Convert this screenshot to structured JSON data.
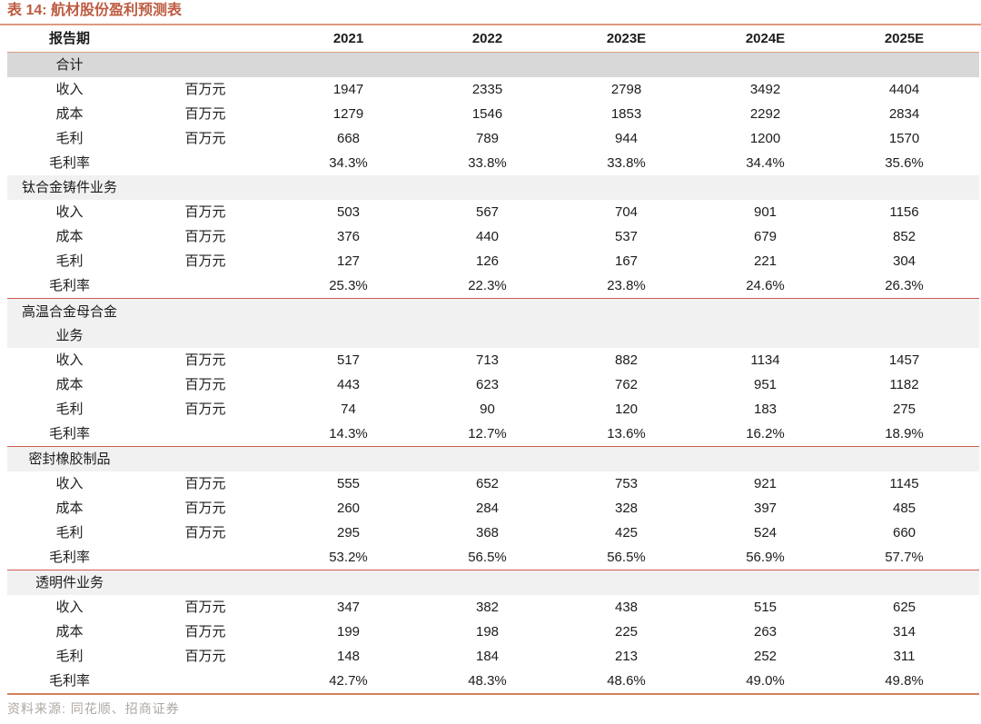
{
  "title": "表 14: 航材股份盈利预测表",
  "source_note": "资料来源: 同花顺、招商证券",
  "colors": {
    "accent": "#BD5B41",
    "rule_orange": "#DD9B7E",
    "rule_orange_bottom": "#D2815A",
    "rule_red": "#CF5A4E",
    "band_dark": "#D8D8D8",
    "band_light": "#F1F1F1",
    "ink": "#1C1C1C",
    "source_gray": "#AFA7A0"
  },
  "table": {
    "header": {
      "period_label": "报告期",
      "years": [
        "2021",
        "2022",
        "2023E",
        "2024E",
        "2025E"
      ]
    },
    "unit_label": "百万元",
    "sections": [
      {
        "name": "合计",
        "name_lines": [
          "合计"
        ],
        "band": "dark",
        "top_divider": false,
        "rows": [
          {
            "label": "收入",
            "unit": "百万元",
            "values": [
              "1947",
              "2335",
              "2798",
              "3492",
              "4404"
            ]
          },
          {
            "label": "成本",
            "unit": "百万元",
            "values": [
              "1279",
              "1546",
              "1853",
              "2292",
              "2834"
            ]
          },
          {
            "label": "毛利",
            "unit": "百万元",
            "values": [
              "668",
              "789",
              "944",
              "1200",
              "1570"
            ]
          },
          {
            "label": "毛利率",
            "unit": "",
            "values": [
              "34.3%",
              "33.8%",
              "33.8%",
              "34.4%",
              "35.6%"
            ]
          }
        ]
      },
      {
        "name": "钛合金铸件业务",
        "name_lines": [
          "钛合金铸件业务"
        ],
        "band": "light",
        "top_divider": false,
        "rows": [
          {
            "label": "收入",
            "unit": "百万元",
            "values": [
              "503",
              "567",
              "704",
              "901",
              "1156"
            ]
          },
          {
            "label": "成本",
            "unit": "百万元",
            "values": [
              "376",
              "440",
              "537",
              "679",
              "852"
            ]
          },
          {
            "label": "毛利",
            "unit": "百万元",
            "values": [
              "127",
              "126",
              "167",
              "221",
              "304"
            ]
          },
          {
            "label": "毛利率",
            "unit": "",
            "values": [
              "25.3%",
              "22.3%",
              "23.8%",
              "24.6%",
              "26.3%"
            ]
          }
        ]
      },
      {
        "name": "高温合金母合金业务",
        "name_lines": [
          "高温合金母合金",
          "业务"
        ],
        "band": "light",
        "top_divider": true,
        "rows": [
          {
            "label": "收入",
            "unit": "百万元",
            "values": [
              "517",
              "713",
              "882",
              "1134",
              "1457"
            ]
          },
          {
            "label": "成本",
            "unit": "百万元",
            "values": [
              "443",
              "623",
              "762",
              "951",
              "1182"
            ]
          },
          {
            "label": "毛利",
            "unit": "百万元",
            "values": [
              "74",
              "90",
              "120",
              "183",
              "275"
            ]
          },
          {
            "label": "毛利率",
            "unit": "",
            "values": [
              "14.3%",
              "12.7%",
              "13.6%",
              "16.2%",
              "18.9%"
            ]
          }
        ]
      },
      {
        "name": "密封橡胶制品",
        "name_lines": [
          "密封橡胶制品"
        ],
        "band": "light",
        "top_divider": true,
        "rows": [
          {
            "label": "收入",
            "unit": "百万元",
            "values": [
              "555",
              "652",
              "753",
              "921",
              "1145"
            ]
          },
          {
            "label": "成本",
            "unit": "百万元",
            "values": [
              "260",
              "284",
              "328",
              "397",
              "485"
            ]
          },
          {
            "label": "毛利",
            "unit": "百万元",
            "values": [
              "295",
              "368",
              "425",
              "524",
              "660"
            ]
          },
          {
            "label": "毛利率",
            "unit": "",
            "values": [
              "53.2%",
              "56.5%",
              "56.5%",
              "56.9%",
              "57.7%"
            ]
          }
        ]
      },
      {
        "name": "透明件业务",
        "name_lines": [
          "透明件业务"
        ],
        "band": "light",
        "top_divider": true,
        "rows": [
          {
            "label": "收入",
            "unit": "百万元",
            "values": [
              "347",
              "382",
              "438",
              "515",
              "625"
            ]
          },
          {
            "label": "成本",
            "unit": "百万元",
            "values": [
              "199",
              "198",
              "225",
              "263",
              "314"
            ]
          },
          {
            "label": "毛利",
            "unit": "百万元",
            "values": [
              "148",
              "184",
              "213",
              "252",
              "311"
            ]
          },
          {
            "label": "毛利率",
            "unit": "",
            "values": [
              "42.7%",
              "48.3%",
              "48.6%",
              "49.0%",
              "49.8%"
            ]
          }
        ]
      }
    ]
  }
}
